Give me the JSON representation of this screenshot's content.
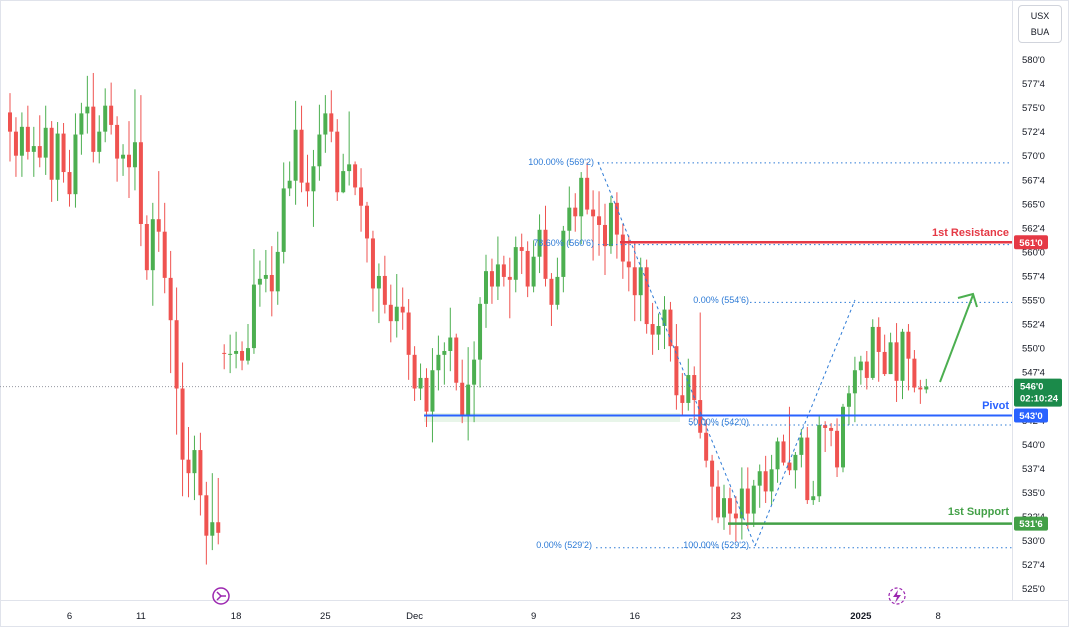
{
  "symbol": {
    "line1": "USX",
    "line2": "BUA"
  },
  "colors": {
    "up": "#4caf50",
    "down": "#ef5350",
    "resistance": "#e53945",
    "pivot": "#2962ff",
    "support": "#43a047",
    "fib": "#2e7bd6",
    "arrow": "#4caf50",
    "last": "#1b8a4a"
  },
  "levels": {
    "resistance": {
      "label": "1st Resistance",
      "value": "561'0",
      "price": 561.0
    },
    "pivot": {
      "label": "Pivot",
      "value": "543'0",
      "price": 543.0
    },
    "support": {
      "label": "1st Support",
      "value": "531'6",
      "price": 531.75
    }
  },
  "last_price": {
    "value": "546'0",
    "countdown": "02:10:24",
    "price": 546.0
  },
  "fib_labels": {
    "a100": "100.00% (569'2)",
    "a786": "78.60% (560'6)",
    "a0": "0.00% (554'6)",
    "a50": "50.00% (542'0)",
    "b0": "0.00% (529'2)",
    "b100": "100.00% (529'2)"
  },
  "chart_data": {
    "type": "candlestick",
    "y_axis": {
      "ticks": [
        "580'0",
        "577'4",
        "575'0",
        "572'4",
        "570'0",
        "567'4",
        "565'0",
        "562'4",
        "560'0",
        "557'4",
        "555'0",
        "552'4",
        "550'0",
        "547'4",
        "545'0",
        "542'4",
        "540'0",
        "537'4",
        "535'0",
        "532'4",
        "530'0",
        "527'4",
        "525'0"
      ],
      "tick_values": [
        580,
        577.5,
        575,
        572.5,
        570,
        567.5,
        565,
        562.5,
        560,
        557.5,
        555,
        552.5,
        550,
        547.5,
        545,
        542.5,
        540,
        537.5,
        535,
        532.5,
        530,
        527.5,
        525
      ],
      "range": [
        523.5,
        584.8
      ]
    },
    "x_axis": {
      "labels": [
        "6",
        "11",
        "18",
        "25",
        "Dec",
        "9",
        "16",
        "23",
        "2025",
        "8"
      ],
      "label_bars": [
        10,
        22,
        38,
        53,
        68,
        88,
        105,
        122,
        143,
        156
      ]
    },
    "bars": 160,
    "ohlc": [
      [
        574.5,
        576.5,
        569.4,
        572.5
      ],
      [
        572.5,
        574.0,
        567.8,
        570.0
      ],
      [
        570.0,
        574.5,
        567.8,
        573.0
      ],
      [
        573.0,
        575.2,
        569.6,
        570.4
      ],
      [
        570.4,
        573.0,
        567.8,
        571.0
      ],
      [
        571.0,
        574.2,
        568.8,
        569.8
      ],
      [
        569.8,
        575.2,
        568.0,
        572.9
      ],
      [
        572.9,
        573.6,
        565.2,
        567.5
      ],
      [
        567.5,
        573.5,
        565.3,
        572.3
      ],
      [
        572.3,
        573.4,
        567.2,
        568.3
      ],
      [
        568.3,
        570.6,
        564.7,
        566.0
      ],
      [
        566.0,
        574.4,
        564.6,
        572.2
      ],
      [
        572.2,
        575.5,
        570.1,
        574.4
      ],
      [
        574.4,
        578.3,
        572.3,
        575.1
      ],
      [
        575.1,
        578.6,
        569.3,
        570.4
      ],
      [
        570.4,
        574.2,
        569.2,
        572.5
      ],
      [
        572.5,
        577.0,
        571.4,
        575.2
      ],
      [
        575.2,
        577.6,
        572.2,
        573.2
      ],
      [
        573.2,
        574.1,
        567.3,
        569.7
      ],
      [
        569.7,
        571.2,
        567.9,
        570.1
      ],
      [
        570.1,
        573.6,
        565.6,
        568.8
      ],
      [
        568.8,
        576.9,
        566.4,
        571.4
      ],
      [
        571.4,
        576.3,
        560.6,
        562.9
      ],
      [
        562.9,
        563.8,
        557.1,
        558.1
      ],
      [
        558.1,
        565.1,
        554.4,
        563.4
      ],
      [
        563.4,
        568.4,
        560.0,
        562.1
      ],
      [
        562.1,
        565.1,
        555.7,
        557.3
      ],
      [
        557.3,
        560.1,
        547.4,
        552.9
      ],
      [
        552.9,
        556.3,
        541.0,
        545.8
      ],
      [
        545.8,
        548.5,
        534.6,
        538.4
      ],
      [
        538.4,
        541.8,
        534.5,
        537.0
      ],
      [
        537.0,
        540.9,
        534.2,
        539.4
      ],
      [
        539.4,
        541.2,
        532.6,
        534.7
      ],
      [
        534.7,
        536.1,
        527.5,
        530.5
      ],
      [
        530.5,
        537.0,
        529.0,
        531.9
      ],
      [
        531.9,
        536.5,
        529.6,
        530.8
      ],
      [
        549.5,
        550.4,
        547.8,
        549.4
      ],
      [
        549.4,
        551.4,
        547.4,
        549.4
      ],
      [
        549.4,
        551.7,
        547.9,
        549.7
      ],
      [
        549.7,
        550.7,
        547.7,
        548.7
      ],
      [
        548.7,
        552.5,
        548.3,
        550.0
      ],
      [
        550.0,
        560.3,
        549.4,
        556.6
      ],
      [
        556.6,
        559.1,
        554.3,
        557.2
      ],
      [
        557.2,
        560.2,
        555.8,
        557.6
      ],
      [
        557.6,
        560.6,
        553.3,
        555.9
      ],
      [
        555.9,
        562.1,
        554.5,
        560.0
      ],
      [
        560.0,
        569.3,
        558.8,
        566.6
      ],
      [
        566.6,
        569.4,
        565.8,
        567.4
      ],
      [
        567.4,
        575.7,
        564.9,
        572.7
      ],
      [
        572.7,
        575.2,
        566.2,
        567.2
      ],
      [
        567.2,
        570.1,
        564.7,
        566.3
      ],
      [
        566.3,
        570.6,
        562.6,
        568.9
      ],
      [
        568.9,
        575.3,
        567.4,
        572.2
      ],
      [
        572.2,
        576.3,
        570.3,
        574.4
      ],
      [
        574.4,
        576.8,
        571.4,
        572.5
      ],
      [
        572.5,
        573.8,
        565.3,
        566.2
      ],
      [
        566.2,
        570.2,
        566.1,
        568.4
      ],
      [
        568.4,
        574.6,
        566.9,
        569.1
      ],
      [
        569.1,
        569.4,
        565.9,
        566.7
      ],
      [
        566.7,
        568.7,
        562.1,
        564.8
      ],
      [
        564.8,
        565.2,
        558.9,
        561.4
      ],
      [
        561.4,
        562.2,
        553.8,
        556.2
      ],
      [
        556.2,
        558.8,
        552.6,
        557.5
      ],
      [
        557.5,
        559.6,
        553.6,
        554.5
      ],
      [
        554.5,
        556.6,
        550.6,
        552.8
      ],
      [
        552.8,
        557.7,
        551.1,
        554.3
      ],
      [
        554.3,
        556.3,
        551.9,
        553.7
      ],
      [
        553.7,
        555.1,
        546.7,
        549.3
      ],
      [
        549.3,
        550.2,
        544.5,
        545.8
      ],
      [
        545.8,
        548.4,
        544.6,
        546.9
      ],
      [
        546.9,
        547.9,
        541.8,
        543.4
      ],
      [
        543.4,
        550.0,
        540.2,
        547.7
      ],
      [
        547.7,
        551.3,
        545.6,
        549.3
      ],
      [
        549.3,
        550.6,
        546.2,
        549.7
      ],
      [
        549.7,
        554.2,
        547.6,
        551.1
      ],
      [
        551.1,
        551.5,
        545.6,
        546.4
      ],
      [
        546.4,
        548.8,
        542.2,
        542.9
      ],
      [
        542.9,
        550.1,
        540.4,
        546.2
      ],
      [
        546.2,
        550.7,
        542.3,
        548.8
      ],
      [
        548.8,
        555.3,
        545.9,
        554.6
      ],
      [
        554.6,
        559.7,
        552.1,
        558.0
      ],
      [
        558.0,
        559.3,
        554.6,
        556.4
      ],
      [
        556.4,
        561.6,
        555.0,
        558.7
      ],
      [
        558.7,
        559.6,
        556.4,
        557.4
      ],
      [
        557.4,
        559.4,
        553.1,
        557.1
      ],
      [
        557.1,
        561.6,
        555.8,
        560.5
      ],
      [
        560.5,
        561.9,
        557.7,
        560.1
      ],
      [
        560.1,
        561.1,
        555.3,
        556.4
      ],
      [
        556.4,
        561.2,
        555.8,
        559.5
      ],
      [
        559.5,
        563.9,
        557.8,
        562.3
      ],
      [
        562.3,
        564.8,
        556.4,
        557.2
      ],
      [
        557.2,
        557.8,
        552.3,
        554.5
      ],
      [
        554.5,
        559.4,
        554.0,
        557.4
      ],
      [
        557.4,
        562.7,
        555.8,
        562.2
      ],
      [
        562.2,
        566.8,
        560.7,
        564.6
      ],
      [
        564.6,
        566.1,
        562.1,
        563.7
      ],
      [
        563.7,
        568.3,
        560.8,
        567.7
      ],
      [
        567.7,
        569.3,
        563.9,
        564.4
      ],
      [
        564.4,
        566.4,
        559.1,
        563.7
      ],
      [
        563.7,
        566.3,
        559.6,
        562.8
      ],
      [
        562.8,
        565.0,
        557.6,
        560.6
      ],
      [
        560.6,
        565.8,
        559.8,
        565.1
      ],
      [
        565.1,
        566.2,
        559.3,
        561.8
      ],
      [
        561.8,
        562.9,
        557.2,
        559.0
      ],
      [
        559.0,
        561.7,
        555.9,
        558.4
      ],
      [
        558.4,
        561.1,
        552.8,
        555.5
      ],
      [
        555.5,
        559.4,
        552.8,
        558.4
      ],
      [
        558.4,
        559.2,
        551.5,
        552.5
      ],
      [
        552.5,
        554.7,
        549.3,
        551.4
      ],
      [
        551.4,
        553.6,
        549.8,
        552.3
      ],
      [
        552.3,
        555.4,
        549.9,
        554.0
      ],
      [
        554.0,
        554.8,
        548.6,
        550.2
      ],
      [
        550.2,
        552.5,
        543.6,
        545.1
      ],
      [
        545.1,
        547.4,
        543.0,
        544.3
      ],
      [
        544.3,
        548.9,
        543.5,
        547.2
      ],
      [
        547.2,
        548.1,
        542.4,
        544.6
      ],
      [
        544.6,
        553.7,
        540.6,
        541.2
      ],
      [
        541.2,
        542.6,
        537.6,
        538.3
      ],
      [
        538.3,
        538.9,
        532.1,
        535.6
      ],
      [
        535.6,
        537.3,
        531.8,
        532.4
      ],
      [
        532.4,
        535.8,
        531.1,
        534.4
      ],
      [
        534.4,
        535.5,
        530.6,
        532.8
      ],
      [
        532.8,
        534.6,
        529.9,
        532.3
      ],
      [
        532.3,
        537.6,
        530.1,
        535.4
      ],
      [
        535.4,
        537.6,
        531.2,
        532.8
      ],
      [
        532.8,
        536.3,
        531.4,
        535.7
      ],
      [
        535.7,
        537.9,
        533.4,
        537.2
      ],
      [
        537.2,
        538.8,
        533.9,
        535.1
      ],
      [
        535.1,
        538.9,
        533.7,
        537.4
      ],
      [
        537.4,
        540.7,
        536.0,
        540.3
      ],
      [
        540.3,
        541.0,
        537.8,
        538.1
      ],
      [
        538.1,
        543.9,
        536.8,
        537.3
      ],
      [
        537.3,
        539.2,
        535.4,
        538.9
      ],
      [
        538.9,
        541.6,
        537.6,
        540.7
      ],
      [
        540.7,
        541.8,
        533.8,
        534.2
      ],
      [
        534.2,
        536.2,
        533.7,
        534.6
      ],
      [
        534.6,
        543.1,
        534.0,
        542.0
      ],
      [
        542.0,
        542.4,
        539.2,
        541.7
      ],
      [
        541.7,
        542.2,
        539.8,
        541.4
      ],
      [
        541.4,
        542.7,
        536.6,
        537.6
      ],
      [
        537.6,
        544.2,
        537.1,
        543.9
      ],
      [
        543.9,
        546.1,
        542.0,
        545.3
      ],
      [
        545.3,
        549.1,
        542.3,
        547.7
      ],
      [
        547.7,
        549.2,
        546.2,
        548.6
      ],
      [
        548.6,
        549.7,
        545.7,
        546.9
      ],
      [
        546.9,
        553.0,
        546.7,
        552.2
      ],
      [
        552.2,
        553.2,
        546.5,
        549.6
      ],
      [
        549.6,
        551.4,
        547.1,
        547.3
      ],
      [
        547.3,
        551.6,
        547.3,
        550.6
      ],
      [
        550.6,
        552.6,
        544.4,
        546.6
      ],
      [
        546.6,
        552.0,
        544.7,
        551.7
      ],
      [
        551.7,
        552.5,
        545.6,
        548.9
      ],
      [
        548.9,
        549.8,
        545.4,
        545.9
      ],
      [
        545.9,
        546.7,
        544.2,
        545.7
      ],
      [
        545.7,
        546.8,
        545.3,
        546.0
      ]
    ]
  }
}
